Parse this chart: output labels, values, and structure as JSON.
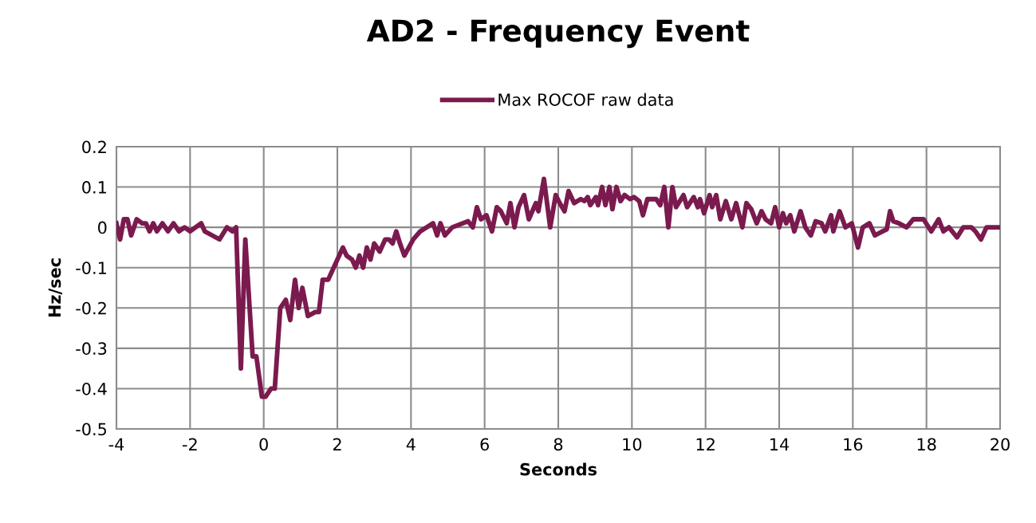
{
  "chart_data": {
    "type": "line",
    "title": "AD2 - Frequency Event",
    "xlabel": "Seconds",
    "ylabel": "Hz/sec",
    "xlim": [
      -4,
      20
    ],
    "xticks": [
      -4,
      -2,
      0,
      2,
      4,
      6,
      8,
      10,
      12,
      14,
      16,
      18,
      20
    ],
    "ylim": [
      -0.5,
      0.2
    ],
    "yticks": [
      -0.5,
      -0.4,
      -0.3,
      -0.2,
      -0.1,
      0,
      0.1,
      0.2
    ],
    "grid": true,
    "legend": "top",
    "marker": "none",
    "line_style": "solid",
    "series": [
      {
        "name": "Max ROCOF raw data",
        "color": "#7b1a4e",
        "x": [
          -4,
          -3.9,
          -3.8,
          -3.7,
          -3.6,
          -3.45,
          -3.3,
          -3.2,
          -3.1,
          -3.0,
          -2.9,
          -2.75,
          -2.6,
          -2.45,
          -2.3,
          -2.15,
          -2.0,
          -1.85,
          -1.7,
          -1.6,
          -1.4,
          -1.2,
          -1.0,
          -0.85,
          -0.75,
          -0.62,
          -0.5,
          -0.3,
          -0.2,
          -0.05,
          0.05,
          0.2,
          0.3,
          0.45,
          0.6,
          0.72,
          0.85,
          0.95,
          1.05,
          1.2,
          1.4,
          1.5,
          1.6,
          1.75,
          1.9,
          2.0,
          2.15,
          2.25,
          2.4,
          2.5,
          2.6,
          2.7,
          2.8,
          2.9,
          3.0,
          3.15,
          3.3,
          3.4,
          3.5,
          3.6,
          3.7,
          3.82,
          4.06,
          4.25,
          4.6,
          4.71,
          4.8,
          4.92,
          5.12,
          5.55,
          5.68,
          5.79,
          5.9,
          6.05,
          6.2,
          6.33,
          6.44,
          6.6,
          6.7,
          6.81,
          6.92,
          7.07,
          7.2,
          7.39,
          7.46,
          7.61,
          7.78,
          7.93,
          8.04,
          8.17,
          8.28,
          8.43,
          8.61,
          8.71,
          8.8,
          8.87,
          9.02,
          9.08,
          9.19,
          9.28,
          9.39,
          9.47,
          9.58,
          9.69,
          9.8,
          9.95,
          10.06,
          10.2,
          10.3,
          10.42,
          10.66,
          10.77,
          10.88,
          10.99,
          11.1,
          11.2,
          11.4,
          11.5,
          11.68,
          11.79,
          11.85,
          11.96,
          12.11,
          12.18,
          12.29,
          12.4,
          12.55,
          12.7,
          12.83,
          13.0,
          13.11,
          13.24,
          13.39,
          13.52,
          13.63,
          13.78,
          13.89,
          14.0,
          14.1,
          14.19,
          14.3,
          14.41,
          14.58,
          14.71,
          14.86,
          14.99,
          15.15,
          15.25,
          15.41,
          15.47,
          15.64,
          15.8,
          15.97,
          16.14,
          16.27,
          16.45,
          16.6,
          16.81,
          16.92,
          17.01,
          17.1,
          17.25,
          17.46,
          17.64,
          17.92,
          18.13,
          18.33,
          18.46,
          18.61,
          18.83,
          19.0,
          19.22,
          19.33,
          19.48,
          19.63,
          20.0
        ],
        "values": [
          0.01,
          -0.03,
          0.02,
          0.02,
          -0.02,
          0.02,
          0.01,
          0.01,
          -0.01,
          0.01,
          -0.01,
          0.01,
          -0.01,
          0.01,
          -0.01,
          0.0,
          -0.01,
          0.0,
          0.01,
          -0.01,
          -0.02,
          -0.03,
          0.0,
          -0.01,
          0.0,
          -0.35,
          -0.03,
          -0.32,
          -0.32,
          -0.42,
          -0.42,
          -0.4,
          -0.4,
          -0.2,
          -0.18,
          -0.23,
          -0.13,
          -0.2,
          -0.15,
          -0.22,
          -0.21,
          -0.21,
          -0.13,
          -0.13,
          -0.1,
          -0.08,
          -0.05,
          -0.07,
          -0.08,
          -0.1,
          -0.07,
          -0.1,
          -0.05,
          -0.08,
          -0.04,
          -0.06,
          -0.03,
          -0.03,
          -0.04,
          -0.01,
          -0.04,
          -0.07,
          -0.03,
          -0.01,
          0.01,
          -0.02,
          0.01,
          -0.02,
          0.0,
          0.015,
          0.0,
          0.05,
          0.02,
          0.03,
          -0.01,
          0.05,
          0.04,
          0.01,
          0.06,
          0.0,
          0.05,
          0.08,
          0.02,
          0.06,
          0.04,
          0.12,
          0.0,
          0.08,
          0.06,
          0.04,
          0.09,
          0.06,
          0.07,
          0.065,
          0.075,
          0.055,
          0.075,
          0.055,
          0.1,
          0.055,
          0.1,
          0.045,
          0.1,
          0.065,
          0.08,
          0.07,
          0.075,
          0.065,
          0.03,
          0.07,
          0.07,
          0.055,
          0.1,
          0.0,
          0.1,
          0.05,
          0.08,
          0.05,
          0.075,
          0.05,
          0.07,
          0.035,
          0.08,
          0.05,
          0.08,
          0.02,
          0.065,
          0.02,
          0.06,
          0.0,
          0.06,
          0.045,
          0.01,
          0.04,
          0.02,
          0.01,
          0.05,
          0.0,
          0.035,
          0.01,
          0.03,
          -0.01,
          0.04,
          0.0,
          -0.02,
          0.015,
          0.01,
          -0.01,
          0.03,
          -0.01,
          0.04,
          0.0,
          0.01,
          -0.05,
          0.0,
          0.01,
          -0.02,
          -0.01,
          -0.005,
          0.04,
          0.015,
          0.01,
          0.0,
          0.02,
          0.02,
          -0.01,
          0.02,
          -0.01,
          0.0,
          -0.025,
          0.0,
          0.0,
          -0.01,
          -0.03,
          0.0,
          0.0
        ]
      }
    ]
  }
}
